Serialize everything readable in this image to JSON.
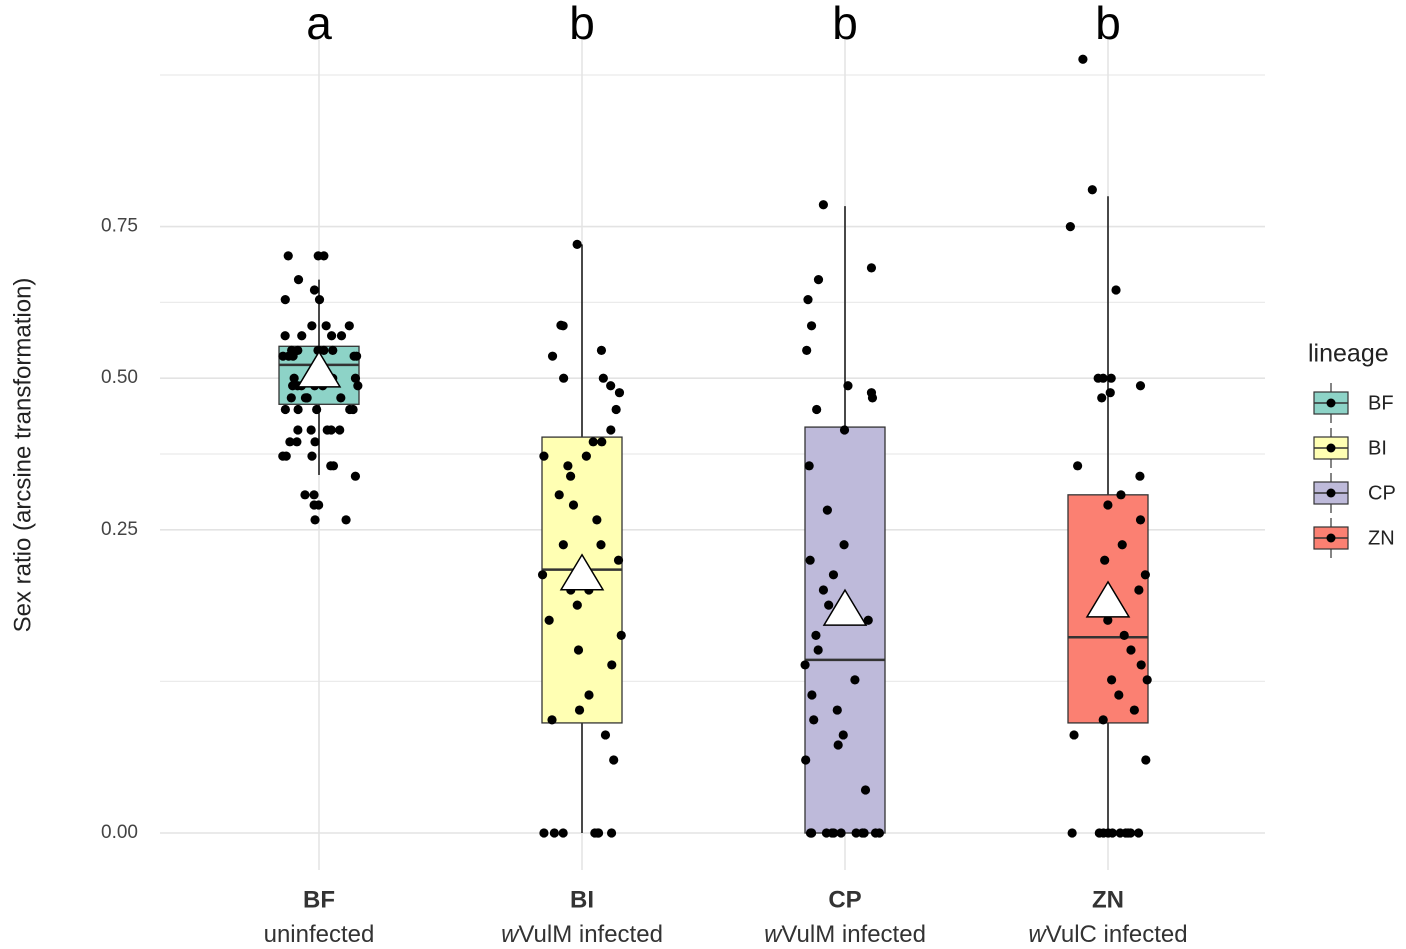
{
  "chart_data": {
    "type": "box",
    "ylabel": "Sex ratio (arcsine transformation)",
    "scale": "arcsine-sqrt",
    "ylim": [
      0,
      0.95
    ],
    "yticks": [
      {
        "value": 0,
        "label": "0.00"
      },
      {
        "value": 0.25,
        "label": "0.25"
      },
      {
        "value": 0.5,
        "label": "0.50"
      },
      {
        "value": 0.75,
        "label": "0.75"
      }
    ],
    "grid": true,
    "legend_title": "lineage",
    "legend_position": "right",
    "categories": [
      "BF",
      "BI",
      "CP",
      "ZN"
    ],
    "sublabels": [
      {
        "italic": "",
        "text": "uninfected"
      },
      {
        "italic": "w",
        "text": "VulM infected"
      },
      {
        "italic": "w",
        "text": "VulM infected"
      },
      {
        "italic": "w",
        "text": "VulC infected"
      }
    ],
    "annotations": [
      "a",
      "b",
      "b",
      "b"
    ],
    "series": [
      {
        "name": "BF",
        "color": "#8dd3c7",
        "whisker_low": 0.336,
        "q1": 0.455,
        "median": 0.523,
        "q3": 0.555,
        "whisker_high": 0.667,
        "mean": 0.511,
        "points": [
          0.705,
          0.705,
          0.705,
          0.667,
          0.65,
          0.634,
          0.634,
          0.59,
          0.59,
          0.59,
          0.573,
          0.573,
          0.573,
          0.573,
          0.548,
          0.548,
          0.548,
          0.548,
          0.548,
          0.548,
          0.538,
          0.538,
          0.538,
          0.538,
          0.538,
          0.5,
          0.5,
          0.5,
          0.5,
          0.5,
          0.5,
          0.487,
          0.487,
          0.487,
          0.487,
          0.487,
          0.487,
          0.466,
          0.466,
          0.466,
          0.466,
          0.466,
          0.446,
          0.446,
          0.446,
          0.446,
          0.446,
          0.411,
          0.411,
          0.411,
          0.411,
          0.411,
          0.391,
          0.391,
          0.391,
          0.367,
          0.367,
          0.367,
          0.351,
          0.351,
          0.334,
          0.304,
          0.304,
          0.288,
          0.288,
          0.265,
          0.265
        ]
      },
      {
        "name": "BI",
        "color": "#ffffb3",
        "whisker_low": 0,
        "q1": 0.0357,
        "median": 0.193,
        "q3": 0.399,
        "whisker_high": 0.723,
        "mean": 0.186,
        "points": [
          0.723,
          0.59,
          0.591,
          0.548,
          0.538,
          0.5,
          0.5,
          0.487,
          0.475,
          0.446,
          0.411,
          0.391,
          0.391,
          0.367,
          0.367,
          0.351,
          0.334,
          0.304,
          0.288,
          0.265,
          0.228,
          0.228,
          0.206,
          0.186,
          0.166,
          0.166,
          0.147,
          0.129,
          0.112,
          0.0966,
          0.0819,
          0.0557,
          0.0444,
          0.0377,
          0.0284,
          0.0158,
          0,
          0,
          0,
          0,
          0,
          0,
          0
        ]
      },
      {
        "name": "CP",
        "color": "#bebada",
        "whisker_low": 0,
        "q1": 0,
        "median": 0.0867,
        "q3": 0.416,
        "whisker_high": 0.78,
        "mean": 0.141,
        "points": [
          0.782,
          0.686,
          0.667,
          0.634,
          0.59,
          0.548,
          0.487,
          0.475,
          0.466,
          0.446,
          0.411,
          0.351,
          0.28,
          0.228,
          0.206,
          0.186,
          0.166,
          0.147,
          0.129,
          0.112,
          0.0966,
          0.0819,
          0.0683,
          0.0557,
          0.0444,
          0.0377,
          0.0284,
          0.0229,
          0.0158,
          0.0055,
          0,
          0,
          0,
          0,
          0,
          0,
          0,
          0,
          0,
          0,
          0,
          0
        ]
      },
      {
        "name": "ZN",
        "color": "#fb8072",
        "whisker_low": 0,
        "q1": 0.0357,
        "median": 0.11,
        "q3": 0.304,
        "whisker_high": 0.794,
        "mean": 0.151,
        "points": [
          0.946,
          0.803,
          0.75,
          0.65,
          0.5,
          0.5,
          0.5,
          0.487,
          0.475,
          0.466,
          0.351,
          0.334,
          0.304,
          0.288,
          0.265,
          0.228,
          0.206,
          0.186,
          0.166,
          0.147,
          0.129,
          0.112,
          0.0966,
          0.0819,
          0.0683,
          0.0683,
          0.0557,
          0.0444,
          0.0377,
          0.0284,
          0.0158,
          0,
          0,
          0,
          0,
          0,
          0,
          0,
          0,
          0,
          0
        ]
      }
    ]
  }
}
